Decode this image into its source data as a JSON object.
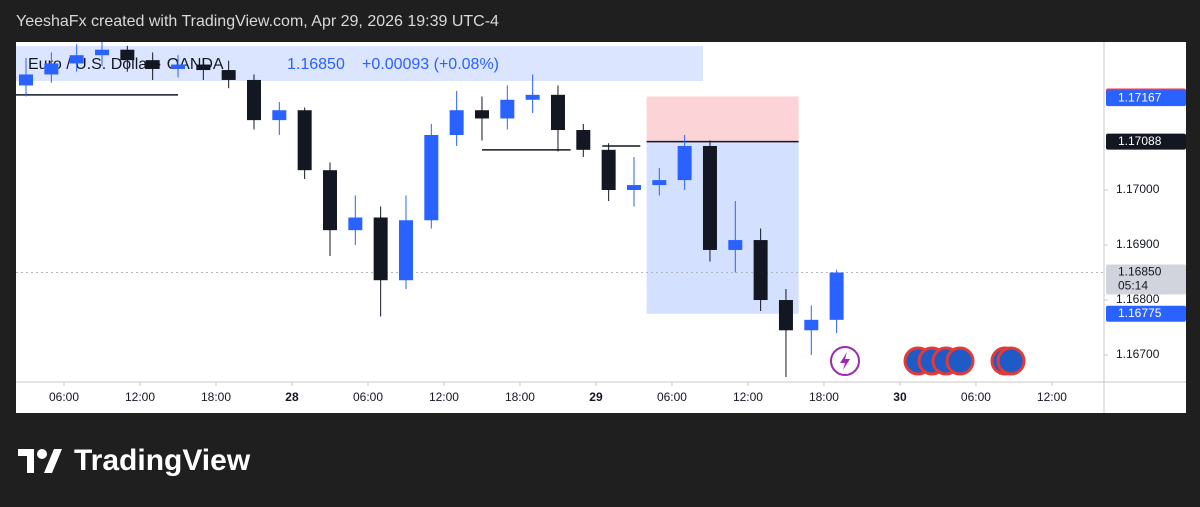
{
  "header": "YeeshaFx created with TradingView.com, Apr 29, 2026 19:39 UTC-4",
  "brand": "TradingView",
  "chart_data": {
    "type": "candlestick",
    "legend": {
      "symbol": "Euro / U.S. Dollar · OANDA",
      "price": "1.16850",
      "change": "+0.00093 (+0.08%)"
    },
    "up_color": "#2962ff",
    "down_color": "#131722",
    "x": [
      3,
      5,
      7,
      9,
      11,
      13,
      15,
      17,
      19,
      21,
      23,
      25,
      27,
      29,
      31,
      33,
      35,
      37,
      39,
      41,
      43,
      45,
      47,
      49,
      51,
      53,
      55,
      57,
      59,
      61,
      63,
      65,
      67
    ],
    "open": [
      1.1719,
      1.1721,
      1.1723,
      1.17245,
      1.17255,
      1.17236,
      1.1722,
      1.17228,
      1.17218,
      1.172,
      1.17127,
      1.17145,
      1.17036,
      1.16927,
      1.1695,
      1.16836,
      1.16945,
      1.171,
      1.17145,
      1.1713,
      1.17164,
      1.17173,
      1.17109,
      1.17073,
      1.17,
      1.17009,
      1.17018,
      1.1708,
      1.16891,
      1.16909,
      1.168,
      1.16745,
      1.16764
    ],
    "high": [
      1.1724,
      1.1725,
      1.17265,
      1.17269,
      1.17262,
      1.1725,
      1.17245,
      1.1724,
      1.17235,
      1.1721,
      1.1716,
      1.1715,
      1.1705,
      1.1699,
      1.1697,
      1.1699,
      1.1712,
      1.1718,
      1.1717,
      1.1719,
      1.1721,
      1.1719,
      1.1712,
      1.17085,
      1.1706,
      1.1704,
      1.171,
      1.1709,
      1.1698,
      1.1693,
      1.1682,
      1.1679,
      1.16855
    ],
    "low": [
      1.1717,
      1.17195,
      1.17215,
      1.17225,
      1.17215,
      1.172,
      1.17205,
      1.172,
      1.17185,
      1.1711,
      1.171,
      1.1702,
      1.1688,
      1.169,
      1.1677,
      1.1682,
      1.1693,
      1.1708,
      1.1709,
      1.1711,
      1.1714,
      1.1707,
      1.1706,
      1.1698,
      1.1697,
      1.1699,
      1.17,
      1.1687,
      1.1685,
      1.1678,
      1.1666,
      1.167,
      1.1674
    ],
    "close": [
      1.1721,
      1.1723,
      1.17245,
      1.17255,
      1.17236,
      1.1722,
      1.17228,
      1.17218,
      1.172,
      1.17127,
      1.17145,
      1.17036,
      1.16927,
      1.1695,
      1.16836,
      1.16945,
      1.171,
      1.17145,
      1.1713,
      1.17164,
      1.17173,
      1.17109,
      1.17073,
      1.17,
      1.17009,
      1.17018,
      1.1708,
      1.16891,
      1.16909,
      1.168,
      1.16745,
      1.16764,
      1.1685
    ],
    "xlim": [
      2.21,
      88.11
    ],
    "ylim": [
      1.16651,
      1.17269
    ],
    "xticks": [
      {
        "value": 6,
        "label": "06:00"
      },
      {
        "value": 12,
        "label": "12:00"
      },
      {
        "value": 18,
        "label": "18:00"
      },
      {
        "value": 24,
        "label": "28"
      },
      {
        "value": 30,
        "label": "06:00"
      },
      {
        "value": 36,
        "label": "12:00"
      },
      {
        "value": 42,
        "label": "18:00"
      },
      {
        "value": 48,
        "label": "29"
      },
      {
        "value": 54,
        "label": "06:00"
      },
      {
        "value": 60,
        "label": "12:00"
      },
      {
        "value": 66,
        "label": "18:00"
      },
      {
        "value": 72,
        "label": "30"
      },
      {
        "value": 78,
        "label": "06:00"
      },
      {
        "value": 84,
        "label": "12:00"
      }
    ],
    "yticks": [
      {
        "value": 1.167,
        "label": "1.16700"
      },
      {
        "value": 1.168,
        "label": "1.16800"
      },
      {
        "value": 1.169,
        "label": "1.16900"
      },
      {
        "value": 1.17,
        "label": "1.17000"
      }
    ],
    "position": {
      "stop": 1.1717,
      "entry": 1.17088,
      "target": 1.16775,
      "start": 52,
      "end": 64
    },
    "levels": [
      {
        "value": 1.17173,
        "from": 2.21,
        "to": 15
      },
      {
        "value": 1.17073,
        "from": 39,
        "to": 46
      },
      {
        "value": 1.1708,
        "from": 48.5,
        "to": 51.5
      }
    ],
    "last_price": 1.1685,
    "countdown": "05:14",
    "price_tags": [
      {
        "value": 1.1717,
        "label": "1.17170",
        "color": "#f23645"
      },
      {
        "value": 1.17167,
        "label": "1.17167",
        "color": "#2962ff"
      },
      {
        "value": 1.17088,
        "label": "1.17088",
        "color": "#131722"
      },
      {
        "value": 1.1685,
        "label": "1.16850",
        "color": "#d1d4dc"
      },
      {
        "value": 1.16775,
        "label": "1.16775",
        "color": "#2962ff"
      }
    ]
  }
}
